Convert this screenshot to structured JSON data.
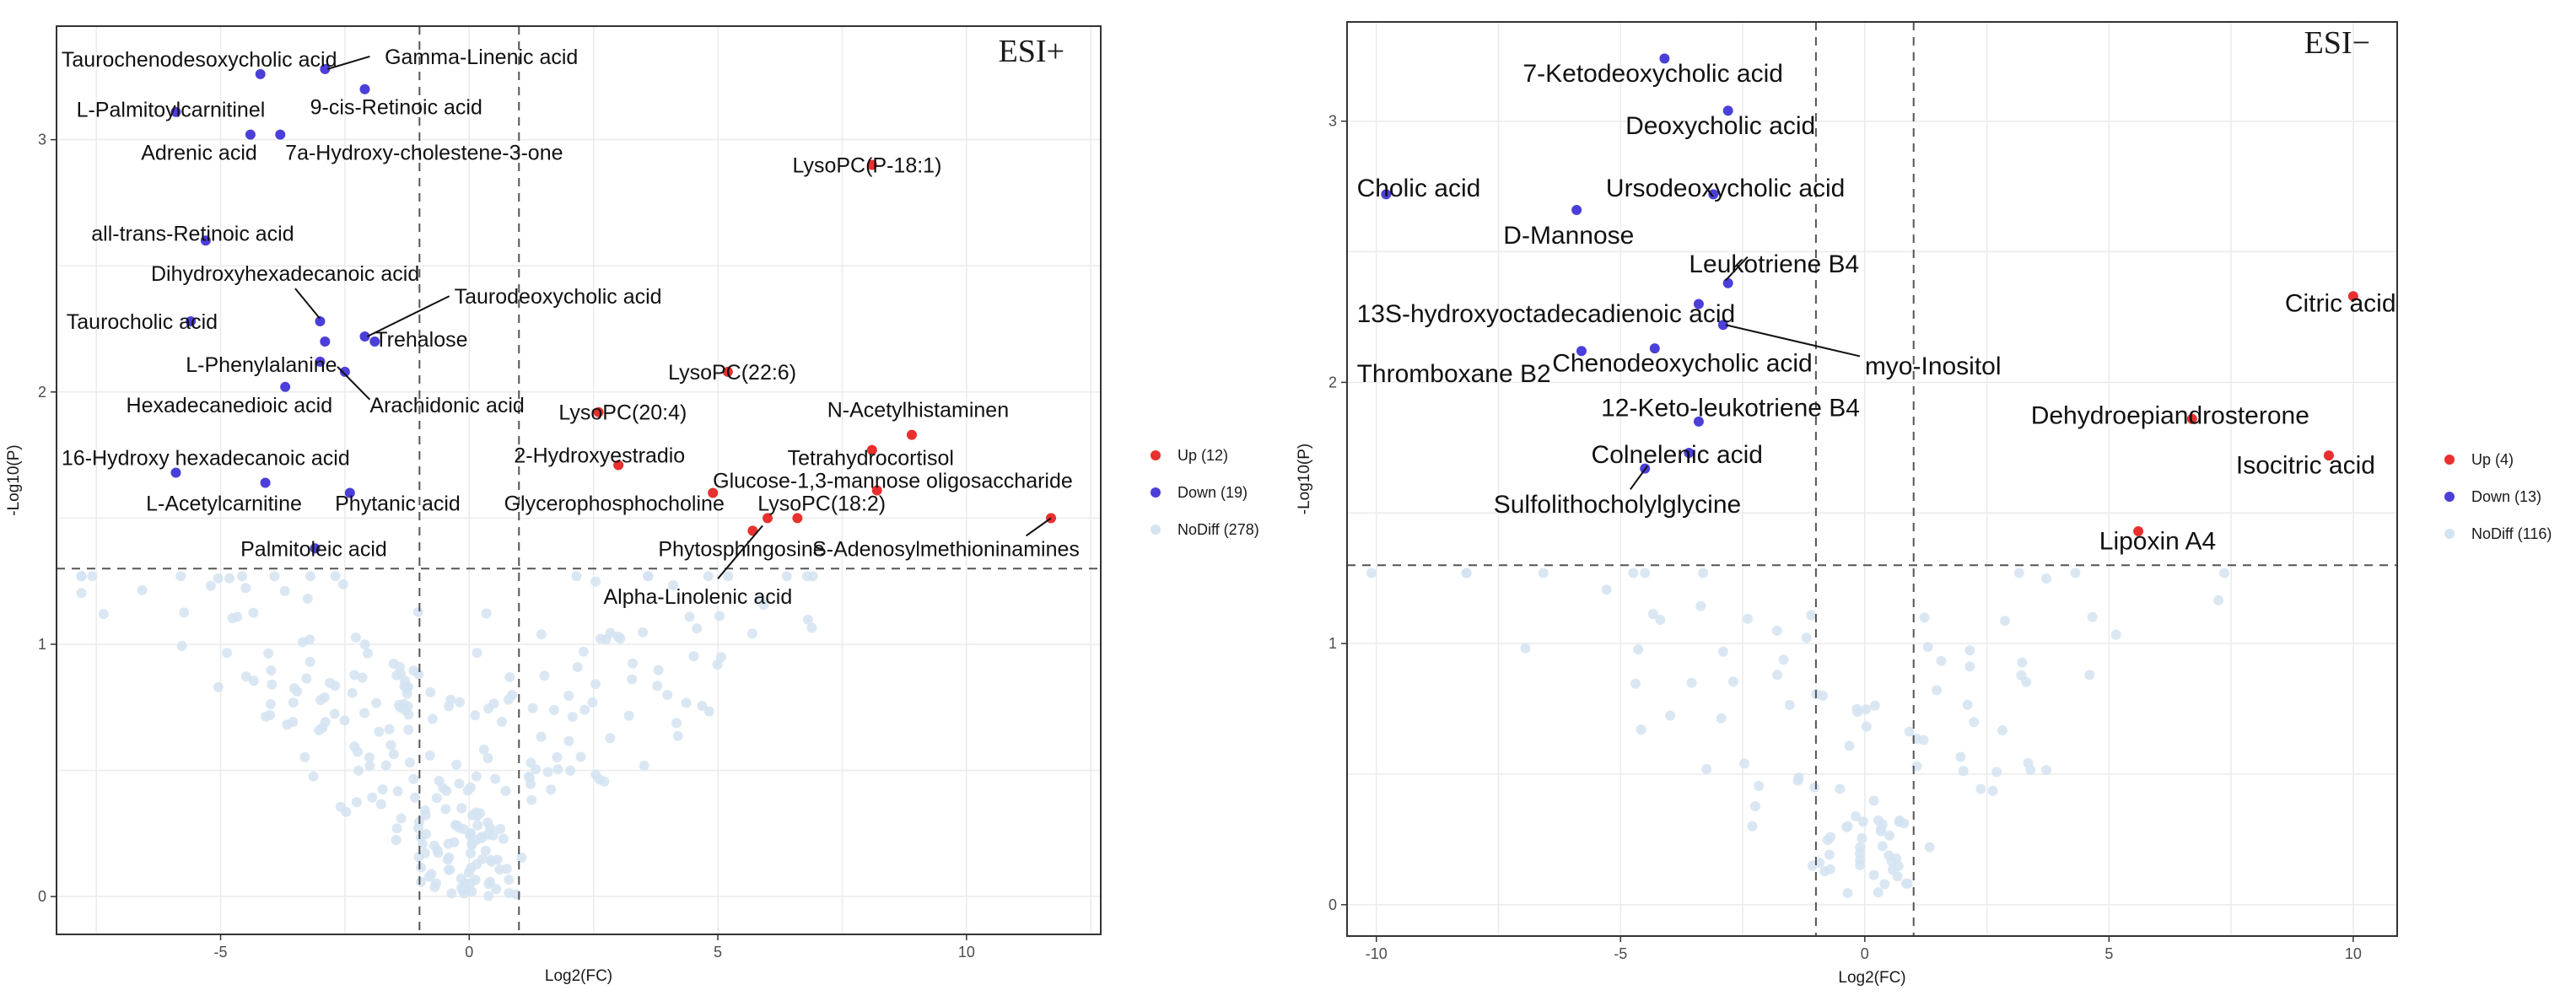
{
  "chart_data": [
    {
      "type": "scatter",
      "title": "ESI+",
      "xlabel": "Log2(FC)",
      "ylabel": "-Log10(P)",
      "xlim": [
        -8.3,
        12.7
      ],
      "ylim": [
        -0.15,
        3.45
      ],
      "x_ticks": [
        -5,
        0,
        5,
        10
      ],
      "y_ticks": [
        0,
        1,
        2,
        3
      ],
      "thresholds": {
        "x": [
          -1,
          1
        ],
        "y": 1.3
      },
      "grid": true,
      "legend_position": "right",
      "colors": {
        "up": "#e8302e",
        "down": "#4b3fd9",
        "nodiff": "#d3e3f1"
      },
      "legend": [
        {
          "key": "up",
          "label": "Up (12)"
        },
        {
          "key": "down",
          "label": "Down (19)"
        },
        {
          "key": "nodiff",
          "label": "NoDiff (278)"
        }
      ],
      "points": [
        {
          "x": -4.2,
          "y": 3.26,
          "g": "down",
          "label": "Taurochenodesoxycholic acid",
          "lx": -8.2,
          "ly": 3.32
        },
        {
          "x": -2.9,
          "y": 3.28,
          "g": "down",
          "label": "Gamma-Linenic acid",
          "lx": -1.7,
          "ly": 3.33,
          "lead": [
            -2.0,
            3.33,
            -2.85,
            3.28
          ]
        },
        {
          "x": -2.1,
          "y": 3.2,
          "g": "down",
          "label": "9-cis-Retinoic acid",
          "lx": -3.2,
          "ly": 3.13
        },
        {
          "x": -5.9,
          "y": 3.11,
          "g": "down",
          "label": "L-Palmitoylcarnitinel",
          "lx": -7.9,
          "ly": 3.12
        },
        {
          "x": -4.4,
          "y": 3.02,
          "g": "down",
          "label": "Adrenic acid",
          "lx": -6.6,
          "ly": 2.95
        },
        {
          "x": -3.8,
          "y": 3.02,
          "g": "down",
          "label": "7a-Hydroxy-cholestene-3-one",
          "lx": -3.7,
          "ly": 2.95
        },
        {
          "x": 8.1,
          "y": 2.9,
          "g": "up",
          "label": "LysoPC(P-18:1)",
          "lx": 6.5,
          "ly": 2.9
        },
        {
          "x": -5.3,
          "y": 2.6,
          "g": "down",
          "label": "all-trans-Retinoic acid",
          "lx": -7.6,
          "ly": 2.63
        },
        {
          "x": -3.0,
          "y": 2.28,
          "g": "down",
          "label": "Dihydroxyhexadecanoic acid",
          "lx": -6.4,
          "ly": 2.47,
          "lead": [
            -3.5,
            2.41,
            -3.0,
            2.29
          ]
        },
        {
          "x": -5.6,
          "y": 2.28,
          "g": "down",
          "label": "Taurocholic acid",
          "lx": -8.1,
          "ly": 2.28
        },
        {
          "x": -2.1,
          "y": 2.22,
          "g": "down",
          "label": "Taurodeoxycholic acid",
          "lx": -0.3,
          "ly": 2.38,
          "lead": [
            -0.4,
            2.38,
            -2.05,
            2.22
          ]
        },
        {
          "x": -1.9,
          "y": 2.2,
          "g": "down",
          "label": "Trehalose",
          "lx": -1.9,
          "ly": 2.21
        },
        {
          "x": -2.9,
          "y": 2.2,
          "g": "down"
        },
        {
          "x": -3.0,
          "y": 2.12,
          "g": "down",
          "label": "L-Phenylalanine",
          "lx": -5.7,
          "ly": 2.11
        },
        {
          "x": 5.2,
          "y": 2.08,
          "g": "up",
          "label": "LysoPC(22:6)",
          "lx": 4.0,
          "ly": 2.08
        },
        {
          "x": -3.7,
          "y": 2.02,
          "g": "down",
          "label": "Hexadecanedioic acid",
          "lx": -6.9,
          "ly": 1.95
        },
        {
          "x": -2.5,
          "y": 2.08,
          "g": "down",
          "label": "Arachidonic acid",
          "lx": -2.0,
          "ly": 1.95,
          "lead": [
            -2.0,
            1.97,
            -2.65,
            2.1
          ]
        },
        {
          "x": 2.6,
          "y": 1.92,
          "g": "up",
          "label": "LysoPC(20:4)",
          "lx": 1.8,
          "ly": 1.92
        },
        {
          "x": 8.9,
          "y": 1.83,
          "g": "up",
          "label": "N-Acetylhistaminen",
          "lx": 7.2,
          "ly": 1.93
        },
        {
          "x": 8.1,
          "y": 1.77,
          "g": "up",
          "label": "Tetrahydrocortisol",
          "lx": 6.4,
          "ly": 1.74
        },
        {
          "x": 3.0,
          "y": 1.71,
          "g": "up",
          "label": "2-Hydroxyestradio",
          "lx": 0.9,
          "ly": 1.75
        },
        {
          "x": -5.9,
          "y": 1.68,
          "g": "down",
          "label": "16-Hydroxy hexadecanoic acid",
          "lx": -8.2,
          "ly": 1.74
        },
        {
          "x": 8.2,
          "y": 1.61,
          "g": "up",
          "label": "Glucose-1,3-mannose oligosaccharide",
          "lx": 4.9,
          "ly": 1.65
        },
        {
          "x": -4.1,
          "y": 1.64,
          "g": "down",
          "label": "L-Acetylcarnitine",
          "lx": -6.5,
          "ly": 1.56
        },
        {
          "x": -2.4,
          "y": 1.6,
          "g": "down",
          "label": "Phytanic acid",
          "lx": -2.7,
          "ly": 1.56
        },
        {
          "x": 4.9,
          "y": 1.6,
          "g": "up",
          "label": "Glycerophosphocholine",
          "lx": 0.7,
          "ly": 1.56
        },
        {
          "x": 6.6,
          "y": 1.5,
          "g": "up",
          "label": "LysoPC(18:2)",
          "lx": 5.8,
          "ly": 1.56
        },
        {
          "x": 6.0,
          "y": 1.5,
          "g": "up",
          "label": "Phytosphingosine",
          "lx": 3.8,
          "ly": 1.38
        },
        {
          "x": 11.7,
          "y": 1.5,
          "g": "up",
          "label": "S-Adenosylmethioninamines",
          "lx": 6.9,
          "ly": 1.38,
          "lead": [
            11.2,
            1.43,
            11.7,
            1.5
          ]
        },
        {
          "x": -3.1,
          "y": 1.38,
          "g": "down",
          "label": "Palmitoleic acid",
          "lx": -4.6,
          "ly": 1.38
        },
        {
          "x": 5.7,
          "y": 1.45,
          "g": "up",
          "label": "Alpha-Linolenic acid",
          "lx": 2.7,
          "ly": 1.19,
          "lead": [
            5.0,
            1.26,
            5.9,
            1.47
          ]
        }
      ]
    },
    {
      "type": "scatter",
      "title": "ESI−",
      "xlabel": "Log2(FC)",
      "ylabel": "-Log10(P)",
      "xlim": [
        -10.6,
        10.9
      ],
      "ylim": [
        -0.12,
        3.38
      ],
      "x_ticks": [
        -10,
        -5,
        0,
        5,
        10
      ],
      "y_ticks": [
        0,
        1,
        2,
        3
      ],
      "thresholds": {
        "x": [
          -1,
          1
        ],
        "y": 1.3
      },
      "grid": true,
      "legend_position": "right",
      "colors": {
        "up": "#e8302e",
        "down": "#4b3fd9",
        "nodiff": "#d3e3f1"
      },
      "legend": [
        {
          "key": "up",
          "label": "Up (4)"
        },
        {
          "key": "down",
          "label": "Down (13)"
        },
        {
          "key": "nodiff",
          "label": "NoDiff (116)"
        }
      ],
      "points": [
        {
          "x": -4.1,
          "y": 3.24,
          "g": "down",
          "label": "7-Ketodeoxycholic acid",
          "lx": -7.0,
          "ly": 3.18
        },
        {
          "x": -2.8,
          "y": 3.04,
          "g": "down",
          "label": "Deoxycholic acid",
          "lx": -4.9,
          "ly": 2.98
        },
        {
          "x": -9.8,
          "y": 2.72,
          "g": "down",
          "label": "Cholic acid",
          "lx": -10.4,
          "ly": 2.74
        },
        {
          "x": -3.1,
          "y": 2.72,
          "g": "down",
          "label": "Ursodeoxycholic acid",
          "lx": -5.3,
          "ly": 2.74
        },
        {
          "x": -5.9,
          "y": 2.66,
          "g": "down",
          "label": "D-Mannose",
          "lx": -7.4,
          "ly": 2.56
        },
        {
          "x": -2.8,
          "y": 2.38,
          "g": "down",
          "label": "Leukotriene B4",
          "lx": -3.6,
          "ly": 2.45,
          "lead": [
            -2.4,
            2.48,
            -2.85,
            2.39
          ]
        },
        {
          "x": 10.0,
          "y": 2.33,
          "g": "up",
          "label": "Citric acid",
          "lx": 8.6,
          "ly": 2.3
        },
        {
          "x": -3.4,
          "y": 2.3,
          "g": "down",
          "label": "13S-hydroxyoctadecadienoic acid",
          "lx": -10.4,
          "ly": 2.26
        },
        {
          "x": -2.9,
          "y": 2.22,
          "g": "down",
          "label": "myo-Inositol",
          "lx": 0.0,
          "ly": 2.06,
          "lead": [
            -0.1,
            2.1,
            -2.85,
            2.22
          ]
        },
        {
          "x": -4.3,
          "y": 2.13,
          "g": "down",
          "label": "Chenodeoxycholic acid",
          "lx": -6.4,
          "ly": 2.07
        },
        {
          "x": -5.8,
          "y": 2.12,
          "g": "down",
          "label": "Thromboxane B2",
          "lx": -10.4,
          "ly": 2.03
        },
        {
          "x": -3.4,
          "y": 1.85,
          "g": "down",
          "label": "12-Keto-leukotriene B4",
          "lx": -5.4,
          "ly": 1.9
        },
        {
          "x": 6.7,
          "y": 1.86,
          "g": "up",
          "label": "Dehydroepiandrosterone",
          "lx": 3.4,
          "ly": 1.87
        },
        {
          "x": 9.5,
          "y": 1.72,
          "g": "up",
          "label": "Isocitric acid",
          "lx": 7.6,
          "ly": 1.68
        },
        {
          "x": -3.6,
          "y": 1.73,
          "g": "down",
          "label": "Colnelenic acid",
          "lx": -5.6,
          "ly": 1.72
        },
        {
          "x": -4.5,
          "y": 1.67,
          "g": "down",
          "label": "Sulfolithocholylglycine",
          "lx": -7.6,
          "ly": 1.53,
          "lead": [
            -4.8,
            1.59,
            -4.45,
            1.68
          ]
        },
        {
          "x": 5.6,
          "y": 1.43,
          "g": "up",
          "label": "Lipoxin A4",
          "lx": 4.8,
          "ly": 1.39
        }
      ]
    }
  ]
}
